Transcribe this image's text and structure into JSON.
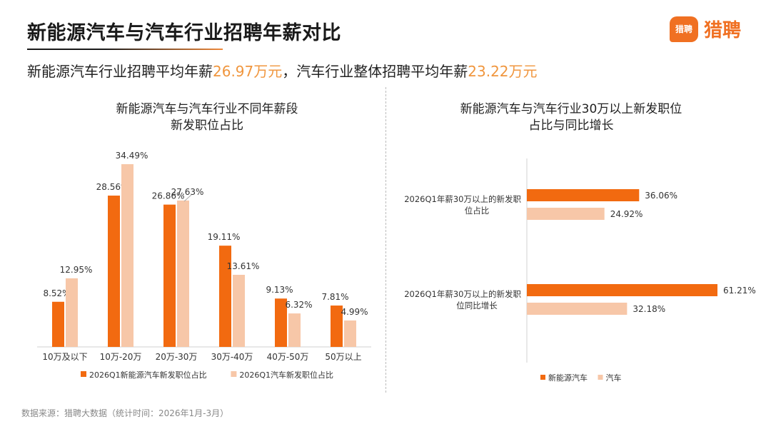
{
  "header": {
    "title": "新能源汽车与汽车行业招聘年薪对比",
    "logo_badge": "猎聘",
    "logo_text": "猎聘",
    "subtitle_part1": "新能源汽车行业招聘平均年薪",
    "subtitle_value1": "26.97万元",
    "subtitle_part2": "，汽车行业整体招聘平均年薪",
    "subtitle_value2": "23.22万元"
  },
  "colors": {
    "primary": "#f26a10",
    "secondary": "#f7c7a8",
    "highlight": "#f0963e",
    "brand": "#f07022"
  },
  "chart_data": [
    {
      "type": "bar",
      "title": "新能源汽车与汽车行业不同年薪段\n新发职位占比",
      "title_line1": "新能源汽车与汽车行业不同年薪段",
      "title_line2": "新发职位占比",
      "categories": [
        "10万及以下",
        "10万-20万",
        "20万-30万",
        "30万-40万",
        "40万-50万",
        "50万以上"
      ],
      "series": [
        {
          "name": "2026Q1新能源汽车新发职位占比",
          "values": [
            8.52,
            28.56,
            26.86,
            19.11,
            9.13,
            7.81
          ],
          "labels": [
            "8.52%",
            "28.56%",
            "26.86%",
            "19.11%",
            "9.13%",
            "7.81%"
          ]
        },
        {
          "name": "2026Q1汽车新发职位占比",
          "values": [
            12.95,
            34.49,
            27.63,
            13.61,
            6.32,
            4.99
          ],
          "labels": [
            "12.95%",
            "34.49%",
            "27.63%",
            "13.61%",
            "6.32%",
            "4.99%"
          ]
        }
      ],
      "ylim": [
        0,
        40
      ],
      "legend": "bottom"
    },
    {
      "type": "bar",
      "orientation": "horizontal",
      "title": "新能源汽车与汽车行业30万以上新发职位\n占比与同比增长",
      "title_line1": "新能源汽车与汽车行业30万以上新发职位",
      "title_line2": "占比与同比增长",
      "categories": [
        {
          "line1": "2026Q1年薪30万以上的新发职",
          "line2": "位占比"
        },
        {
          "line1": "2026Q1年薪30万以上的新发职",
          "line2": "位同比增长"
        }
      ],
      "series": [
        {
          "name": "新能源汽车",
          "values": [
            36.06,
            61.21
          ],
          "labels": [
            "36.06%",
            "61.21%"
          ]
        },
        {
          "name": "汽车",
          "values": [
            24.92,
            32.18
          ],
          "labels": [
            "24.92%",
            "32.18%"
          ]
        }
      ],
      "xlim": [
        0,
        70
      ],
      "legend": "bottom"
    }
  ],
  "footer": {
    "source": "数据来源：猎聘大数据（统计时间：2026年1月-3月）"
  }
}
